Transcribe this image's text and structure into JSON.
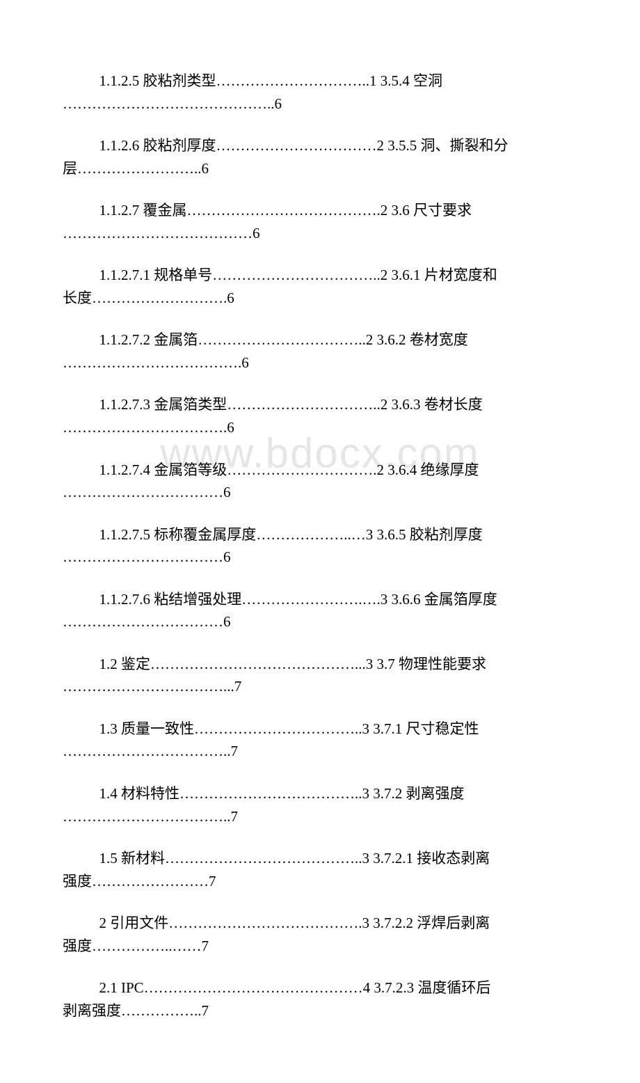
{
  "watermark": "www.bdocx.com",
  "entries": [
    {
      "line1": "1.1.2.5 胶粘剂类型…………………………..1 3.5.4 空洞",
      "line2": "……………………………………..6"
    },
    {
      "line1": "1.1.2.6 胶粘剂厚度……………………………2 3.5.5 洞、撕裂和分",
      "line2": "层……………………..6"
    },
    {
      "line1": "1.1.2.7 覆金属………………………………….2 3.6 尺寸要求",
      "line2": "…………………………………6"
    },
    {
      "line1": "1.1.2.7.1 规格单号……………………………..2 3.6.1 片材宽度和",
      "line2": "长度……………………….6"
    },
    {
      "line1": "1.1.2.7.2 金属箔……………………………..2 3.6.2 卷材宽度",
      "line2": "……………………………….6"
    },
    {
      "line1": "1.1.2.7.3 金属箔类型…………………………..2 3.6.3 卷材长度",
      "line2": "…………………………….6"
    },
    {
      "line1": "1.1.2.7.4 金属箔等级………………………….2 3.6.4 绝缘厚度",
      "line2": "……………………………6"
    },
    {
      "line1": "1.1.2.7.5 标称覆金属厚度………………..…3 3.6.5 胶粘剂厚度",
      "line2": "……………………………6"
    },
    {
      "line1": "1.1.2.7.6 粘结增强处理…………………….….3 3.6.6 金属箔厚度",
      "line2": "……………………………6"
    },
    {
      "line1": "1.2 鉴定……………………………………...3 3.7 物理性能要求",
      "line2": "……………………………...7"
    },
    {
      "line1": "1.3 质量一致性……………………………..3 3.7.1 尺寸稳定性",
      "line2": "……………………………..7"
    },
    {
      "line1": "1.4 材料特性………………………………..3 3.7.2 剥离强度",
      "line2": "……………………………..7"
    },
    {
      "line1": "1.5 新材料…………………………………..3 3.7.2.1 接收态剥离",
      "line2": "强度……………………7"
    },
    {
      "line1": "2 引用文件………………………………….3 3.7.2.2 浮焊后剥离",
      "line2": "强度……………..……7"
    },
    {
      "line1": "2.1 IPC………………………………………4 3.7.2.3 温度循环后",
      "line2": "剥离强度……………..7"
    }
  ]
}
